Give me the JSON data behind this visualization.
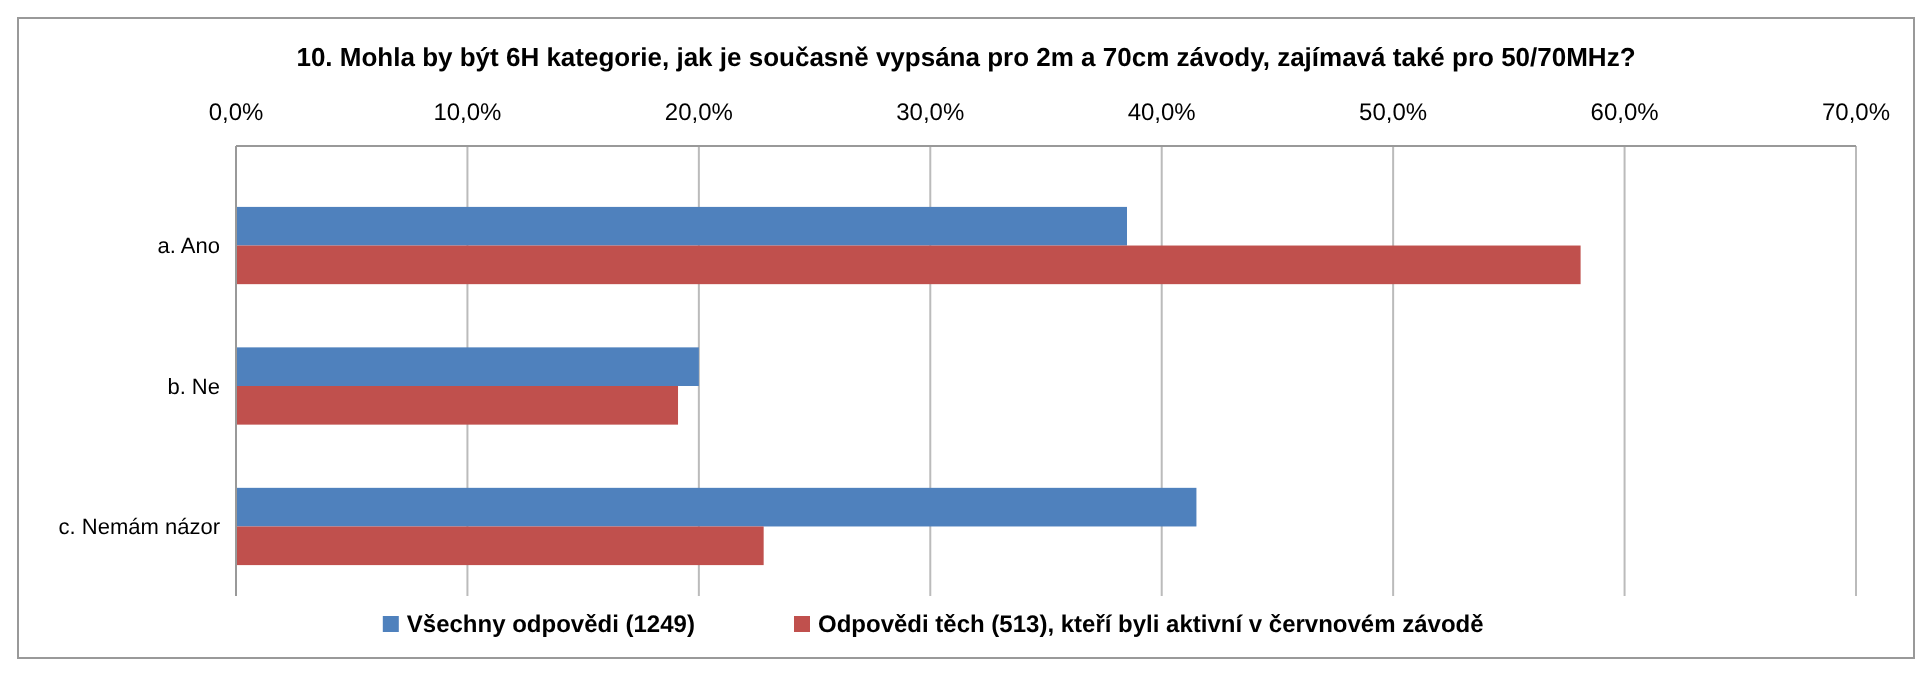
{
  "chart_data": {
    "type": "bar",
    "orientation": "horizontal",
    "title": "10. Mohla by být 6H kategorie, jak je současně vypsána pro 2m a 70cm závody, zajímavá také pro 50/70MHz?",
    "categories": [
      "a. Ano",
      "b. Ne",
      "c. Nemám názor"
    ],
    "series": [
      {
        "name": "Všechny odpovědi (1249)",
        "color": "#4f81bd",
        "values": [
          38.5,
          20.0,
          41.5
        ]
      },
      {
        "name": "Odpovědi těch (513), kteří byli aktivní v červnovém závodě",
        "color": "#c0504d",
        "values": [
          58.1,
          19.1,
          22.8
        ]
      }
    ],
    "xlim": [
      0,
      70
    ],
    "xticks": [
      {
        "value": 0,
        "label": "0,0%"
      },
      {
        "value": 10,
        "label": "10,0%"
      },
      {
        "value": 20,
        "label": "20,0%"
      },
      {
        "value": 30,
        "label": "30,0%"
      },
      {
        "value": 40,
        "label": "40,0%"
      },
      {
        "value": 50,
        "label": "50,0%"
      },
      {
        "value": 60,
        "label": "60,0%"
      },
      {
        "value": 70,
        "label": "70,0%"
      }
    ],
    "grid": "x",
    "legend": "bottom"
  }
}
